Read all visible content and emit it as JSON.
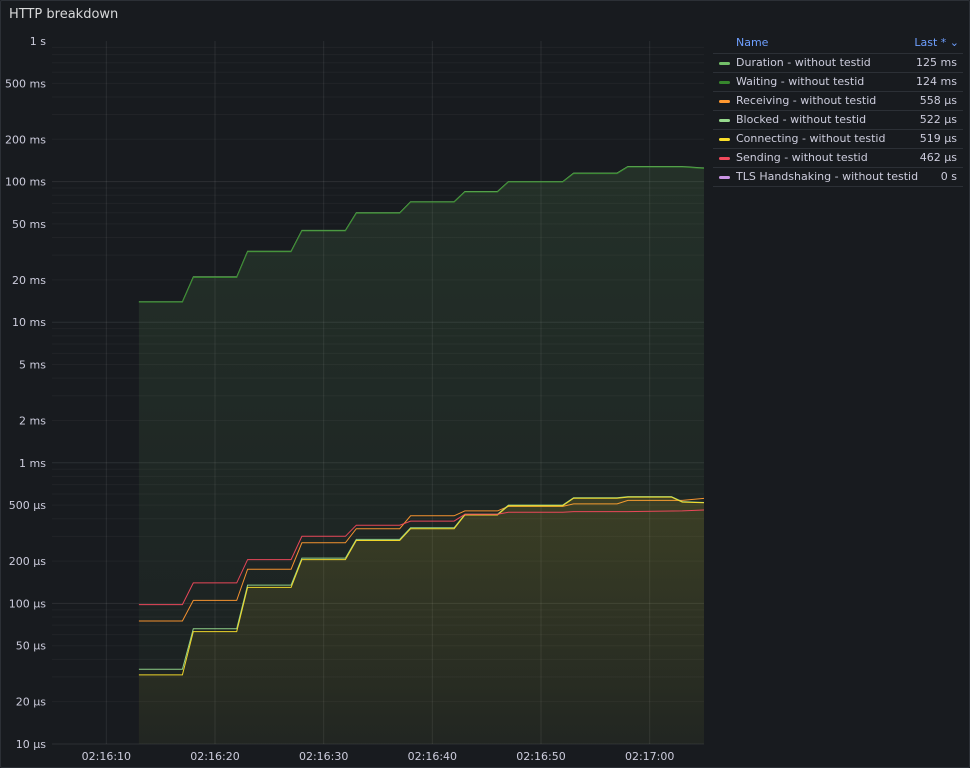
{
  "panel": {
    "title": "HTTP breakdown"
  },
  "legend": {
    "name_header": "Name",
    "value_header": "Last *",
    "sort_icon": "chevron-down-icon",
    "items": [
      {
        "name": "Duration - without testid",
        "value": "125 ms",
        "color": "#73bf69"
      },
      {
        "name": "Waiting - without testid",
        "value": "124 ms",
        "color": "#37872d"
      },
      {
        "name": "Receiving - without testid",
        "value": "558 µs",
        "color": "#ff9830"
      },
      {
        "name": "Blocked - without testid",
        "value": "522 µs",
        "color": "#96d98d"
      },
      {
        "name": "Connecting - without testid",
        "value": "519 µs",
        "color": "#fade2a"
      },
      {
        "name": "Sending - without testid",
        "value": "462 µs",
        "color": "#f2495c"
      },
      {
        "name": "TLS Handshaking - without testid",
        "value": "0 s",
        "color": "#ca95e5"
      }
    ]
  },
  "chart_data": {
    "type": "line",
    "scale": "log",
    "y_unit": "ms",
    "ylim": [
      0.01,
      1000
    ],
    "xlim": [
      "02:16:05",
      "02:17:05"
    ],
    "grid": true,
    "legend_position": "right",
    "y_ticks": [
      {
        "v": 1000,
        "label": "1 s"
      },
      {
        "v": 500,
        "label": "500 ms"
      },
      {
        "v": 200,
        "label": "200 ms"
      },
      {
        "v": 100,
        "label": "100 ms"
      },
      {
        "v": 50,
        "label": "50 ms"
      },
      {
        "v": 20,
        "label": "20 ms"
      },
      {
        "v": 10,
        "label": "10 ms"
      },
      {
        "v": 5,
        "label": "5 ms"
      },
      {
        "v": 2,
        "label": "2 ms"
      },
      {
        "v": 1,
        "label": "1 ms"
      },
      {
        "v": 0.5,
        "label": "500 µs"
      },
      {
        "v": 0.2,
        "label": "200 µs"
      },
      {
        "v": 0.1,
        "label": "100 µs"
      },
      {
        "v": 0.05,
        "label": "50 µs"
      },
      {
        "v": 0.02,
        "label": "20 µs"
      },
      {
        "v": 0.01,
        "label": "10 µs"
      }
    ],
    "x_ticks": [
      "02:16:10",
      "02:16:20",
      "02:16:30",
      "02:16:40",
      "02:16:50",
      "02:17:00"
    ],
    "series": [
      {
        "name": "Duration - without testid",
        "color": "#73bf69",
        "fill": true,
        "points": [
          [
            "02:16:13",
            14
          ],
          [
            "02:16:17",
            14
          ],
          [
            "02:16:18",
            21
          ],
          [
            "02:16:22",
            21
          ],
          [
            "02:16:23",
            32
          ],
          [
            "02:16:27",
            32
          ],
          [
            "02:16:28",
            45
          ],
          [
            "02:16:32",
            45
          ],
          [
            "02:16:33",
            60
          ],
          [
            "02:16:37",
            60
          ],
          [
            "02:16:38",
            72
          ],
          [
            "02:16:42",
            72
          ],
          [
            "02:16:43",
            85
          ],
          [
            "02:16:46",
            85
          ],
          [
            "02:16:47",
            100
          ],
          [
            "02:16:52",
            100
          ],
          [
            "02:16:53",
            115
          ],
          [
            "02:16:57",
            115
          ],
          [
            "02:16:58",
            128
          ],
          [
            "02:17:03",
            128
          ],
          [
            "02:17:05",
            125
          ]
        ]
      },
      {
        "name": "Waiting - without testid",
        "color": "#37872d",
        "fill": false,
        "points": [
          [
            "02:16:13",
            13.9
          ],
          [
            "02:16:17",
            13.9
          ],
          [
            "02:16:18",
            20.8
          ],
          [
            "02:16:22",
            20.8
          ],
          [
            "02:16:23",
            31.7
          ],
          [
            "02:16:27",
            31.7
          ],
          [
            "02:16:28",
            44.6
          ],
          [
            "02:16:32",
            44.6
          ],
          [
            "02:16:33",
            59.5
          ],
          [
            "02:16:37",
            59.5
          ],
          [
            "02:16:38",
            71.5
          ],
          [
            "02:16:42",
            71.5
          ],
          [
            "02:16:43",
            84.4
          ],
          [
            "02:16:46",
            84.4
          ],
          [
            "02:16:47",
            99.3
          ],
          [
            "02:16:52",
            99.3
          ],
          [
            "02:16:53",
            114
          ],
          [
            "02:16:57",
            114
          ],
          [
            "02:16:58",
            127
          ],
          [
            "02:17:03",
            127
          ],
          [
            "02:17:05",
            124
          ]
        ]
      },
      {
        "name": "Receiving - without testid",
        "color": "#ff9830",
        "fill": false,
        "points": [
          [
            "02:16:13",
            0.075
          ],
          [
            "02:16:17",
            0.075
          ],
          [
            "02:16:18",
            0.105
          ],
          [
            "02:16:22",
            0.105
          ],
          [
            "02:16:23",
            0.175
          ],
          [
            "02:16:27",
            0.175
          ],
          [
            "02:16:28",
            0.27
          ],
          [
            "02:16:32",
            0.27
          ],
          [
            "02:16:33",
            0.34
          ],
          [
            "02:16:37",
            0.34
          ],
          [
            "02:16:38",
            0.42
          ],
          [
            "02:16:42",
            0.42
          ],
          [
            "02:16:43",
            0.455
          ],
          [
            "02:16:46",
            0.455
          ],
          [
            "02:16:47",
            0.49
          ],
          [
            "02:16:52",
            0.49
          ],
          [
            "02:16:53",
            0.51
          ],
          [
            "02:16:57",
            0.51
          ],
          [
            "02:16:58",
            0.54
          ],
          [
            "02:17:03",
            0.54
          ],
          [
            "02:17:05",
            0.558
          ]
        ]
      },
      {
        "name": "Blocked - without testid",
        "color": "#96d98d",
        "fill": false,
        "points": [
          [
            "02:16:13",
            0.034
          ],
          [
            "02:16:17",
            0.034
          ],
          [
            "02:16:18",
            0.066
          ],
          [
            "02:16:22",
            0.066
          ],
          [
            "02:16:23",
            0.135
          ],
          [
            "02:16:27",
            0.135
          ],
          [
            "02:16:28",
            0.21
          ],
          [
            "02:16:32",
            0.21
          ],
          [
            "02:16:33",
            0.285
          ],
          [
            "02:16:37",
            0.285
          ],
          [
            "02:16:38",
            0.345
          ],
          [
            "02:16:42",
            0.345
          ],
          [
            "02:16:43",
            0.43
          ],
          [
            "02:16:46",
            0.43
          ],
          [
            "02:16:47",
            0.5
          ],
          [
            "02:16:52",
            0.5
          ],
          [
            "02:16:53",
            0.565
          ],
          [
            "02:16:57",
            0.565
          ],
          [
            "02:16:58",
            0.575
          ],
          [
            "02:17:02",
            0.575
          ],
          [
            "02:17:03",
            0.53
          ],
          [
            "02:17:05",
            0.522
          ]
        ]
      },
      {
        "name": "Connecting - without testid",
        "color": "#fade2a",
        "fill": true,
        "points": [
          [
            "02:16:13",
            0.031
          ],
          [
            "02:16:17",
            0.031
          ],
          [
            "02:16:18",
            0.063
          ],
          [
            "02:16:22",
            0.063
          ],
          [
            "02:16:23",
            0.13
          ],
          [
            "02:16:27",
            0.13
          ],
          [
            "02:16:28",
            0.205
          ],
          [
            "02:16:32",
            0.205
          ],
          [
            "02:16:33",
            0.28
          ],
          [
            "02:16:37",
            0.28
          ],
          [
            "02:16:38",
            0.34
          ],
          [
            "02:16:42",
            0.34
          ],
          [
            "02:16:43",
            0.425
          ],
          [
            "02:16:46",
            0.425
          ],
          [
            "02:16:47",
            0.495
          ],
          [
            "02:16:52",
            0.495
          ],
          [
            "02:16:53",
            0.56
          ],
          [
            "02:16:57",
            0.56
          ],
          [
            "02:16:58",
            0.57
          ],
          [
            "02:17:02",
            0.57
          ],
          [
            "02:17:03",
            0.525
          ],
          [
            "02:17:05",
            0.519
          ]
        ]
      },
      {
        "name": "Sending - without testid",
        "color": "#f2495c",
        "fill": false,
        "points": [
          [
            "02:16:13",
            0.098
          ],
          [
            "02:16:17",
            0.098
          ],
          [
            "02:16:18",
            0.14
          ],
          [
            "02:16:22",
            0.14
          ],
          [
            "02:16:23",
            0.205
          ],
          [
            "02:16:27",
            0.205
          ],
          [
            "02:16:28",
            0.3
          ],
          [
            "02:16:32",
            0.3
          ],
          [
            "02:16:33",
            0.36
          ],
          [
            "02:16:37",
            0.36
          ],
          [
            "02:16:38",
            0.385
          ],
          [
            "02:16:42",
            0.385
          ],
          [
            "02:16:43",
            0.43
          ],
          [
            "02:16:46",
            0.43
          ],
          [
            "02:16:47",
            0.445
          ],
          [
            "02:16:52",
            0.445
          ],
          [
            "02:16:53",
            0.45
          ],
          [
            "02:16:57",
            0.45
          ],
          [
            "02:16:58",
            0.45
          ],
          [
            "02:17:03",
            0.455
          ],
          [
            "02:17:05",
            0.462
          ]
        ]
      }
    ]
  }
}
